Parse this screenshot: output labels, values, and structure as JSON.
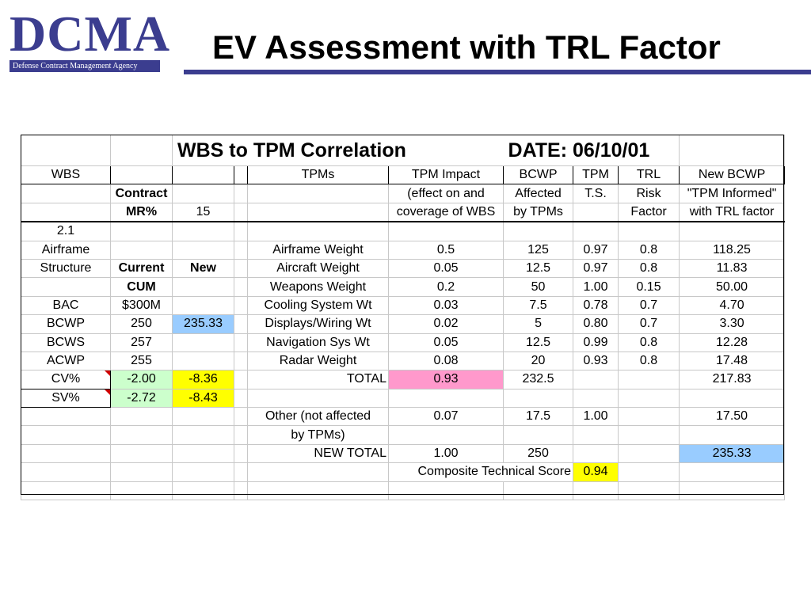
{
  "logo": {
    "name": "DCMA",
    "agency": "Defense Contract Management Agency"
  },
  "title": "EV Assessment with TRL Factor",
  "sheet": {
    "banner_title": "WBS to TPM Correlation",
    "banner_date": "DATE:  06/10/01",
    "headers": {
      "wbs": "WBS",
      "tpms": "TPMs",
      "contract": "Contract",
      "mr": "MR%",
      "mr_value": "15",
      "impact": [
        "TPM Impact",
        "(effect on and",
        "coverage of WBS"
      ],
      "bcwp": [
        "BCWP",
        "Affected",
        "by TPMs"
      ],
      "tpm_ts": [
        "TPM",
        "T.S."
      ],
      "trl": [
        "TRL",
        "Risk",
        "Factor"
      ],
      "new_bcwp": [
        "New BCWP",
        "\"TPM Informed\"",
        "with TRL factor"
      ]
    },
    "left": {
      "wbs_id": "2.1",
      "wbs_name1": "Airframe",
      "wbs_name2": "Structure",
      "col_current": "Current",
      "col_new": "New",
      "col_cum": "CUM",
      "rows": [
        {
          "label": "BAC",
          "current": "$300M",
          "new": ""
        },
        {
          "label": "BCWP",
          "current": "250",
          "new": "235.33"
        },
        {
          "label": "BCWS",
          "current": "257",
          "new": ""
        },
        {
          "label": "ACWP",
          "current": "255",
          "new": ""
        },
        {
          "label": "CV%",
          "current": "-2.00",
          "new": "-8.36"
        },
        {
          "label": "SV%",
          "current": "-2.72",
          "new": "-8.43"
        }
      ]
    },
    "tpm_rows": [
      {
        "name": "Airframe Weight",
        "impact": "0.5",
        "bcwp": "125",
        "ts": "0.97",
        "trl": "0.8",
        "newbcwp": "118.25"
      },
      {
        "name": "Aircraft Weight",
        "impact": "0.05",
        "bcwp": "12.5",
        "ts": "0.97",
        "trl": "0.8",
        "newbcwp": "11.83"
      },
      {
        "name": "Weapons Weight",
        "impact": "0.2",
        "bcwp": "50",
        "ts": "1.00",
        "trl": "0.15",
        "newbcwp": "50.00"
      },
      {
        "name": "Cooling System Wt",
        "impact": "0.03",
        "bcwp": "7.5",
        "ts": "0.78",
        "trl": "0.7",
        "newbcwp": "4.70"
      },
      {
        "name": "Displays/Wiring Wt",
        "impact": "0.02",
        "bcwp": "5",
        "ts": "0.80",
        "trl": "0.7",
        "newbcwp": "3.30"
      },
      {
        "name": "Navigation Sys Wt",
        "impact": "0.05",
        "bcwp": "12.5",
        "ts": "0.99",
        "trl": "0.8",
        "newbcwp": "12.28"
      },
      {
        "name": "Radar Weight",
        "impact": "0.08",
        "bcwp": "20",
        "ts": "0.93",
        "trl": "0.8",
        "newbcwp": "17.48"
      }
    ],
    "total": {
      "label": "TOTAL",
      "impact": "0.93",
      "bcwp": "232.5",
      "newbcwp": "217.83"
    },
    "other": {
      "label1": "Other (not affected",
      "label2": "by TPMs)",
      "impact": "0.07",
      "bcwp": "17.5",
      "ts": "1.00",
      "newbcwp": "17.50"
    },
    "new_total": {
      "label": "NEW TOTAL",
      "impact": "1.00",
      "bcwp": "250",
      "newbcwp": "235.33"
    },
    "composite": {
      "label": "Composite Technical Score",
      "value": "0.94"
    }
  },
  "colors": {
    "brand": "#3b3d8f",
    "green": "#ccffcc",
    "yellow": "#ffff00",
    "blue": "#99ccff",
    "pink": "#ff99cc"
  }
}
